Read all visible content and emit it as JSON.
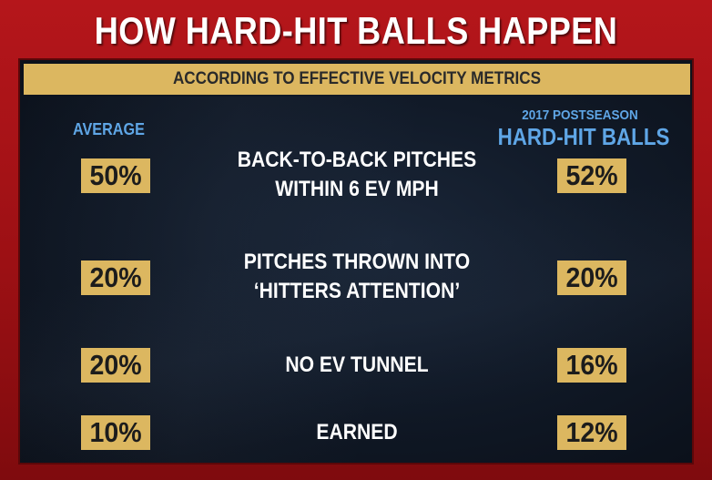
{
  "title": "HOW HARD-HIT BALLS HAPPEN",
  "subtitle": "ACCORDING TO EFFECTIVE VELOCITY METRICS",
  "columns": {
    "left": "AVERAGE",
    "right_small": "2017 POSTSEASON",
    "right_big": "HARD-HIT BALLS"
  },
  "rows": [
    {
      "left": "50%",
      "label_line1": "BACK-TO-BACK PITCHES",
      "label_line2": "WITHIN 6 EV MPH",
      "right": "52%"
    },
    {
      "left": "20%",
      "label_line1": "PITCHES THROWN INTO",
      "label_line2": "‘HITTERS ATTENTION’",
      "right": "20%"
    },
    {
      "left": "20%",
      "label_line1": "NO EV TUNNEL",
      "label_line2": "",
      "right": "16%"
    },
    {
      "left": "10%",
      "label_line1": "EARNED",
      "label_line2": "",
      "right": "12%"
    }
  ],
  "colors": {
    "frame": "#b5161b",
    "panel": "#111a28",
    "gold": "#dcb760",
    "accent_blue": "#5fa6e6",
    "text": "#ffffff"
  }
}
